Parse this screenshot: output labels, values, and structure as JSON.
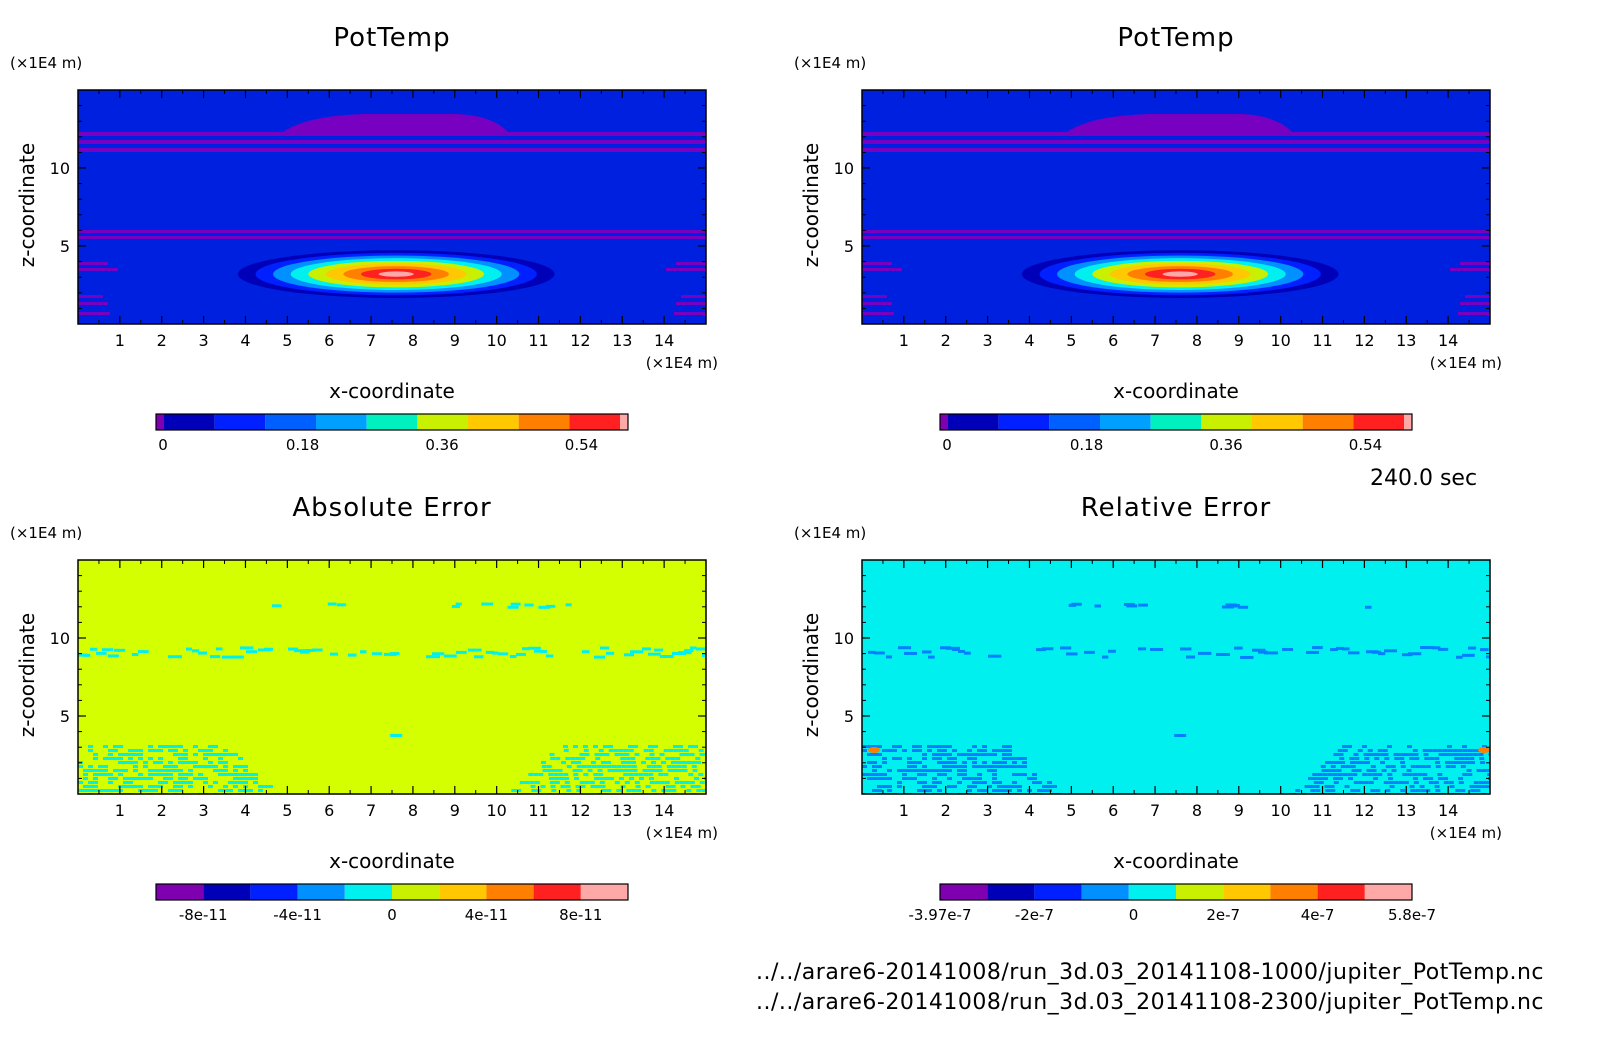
{
  "time_label": "240.0 sec",
  "file_paths": [
    "../../arare6-20141008/run_3d.03_20141108-1000/jupiter_PotTemp.nc",
    "../../arare6-20141008/run_3d.03_20141108-2300/jupiter_PotTemp.nc"
  ],
  "colors": {
    "palette10": [
      "#7f00b0",
      "#0000b8",
      "#0020ff",
      "#0090ff",
      "#00f0f0",
      "#c8f000",
      "#ffc800",
      "#ff8000",
      "#ff2020",
      "#ffa8a8"
    ],
    "potTemp_background": "#0020e0",
    "potTemp_band": "#7800c0",
    "absErr_background": "#d4ff00",
    "absErr_noise": "#00f0f0",
    "relErr_background": "#00f0f0",
    "relErr_noise": "#0080ff"
  },
  "chart_data": [
    {
      "type": "heatmap",
      "title": "PotTemp",
      "xlabel": "x-coordinate",
      "ylabel": "z-coordinate",
      "x_unit": "(×1E4 m)",
      "z_unit": "(×1E4 m)",
      "xlim": [
        0,
        15
      ],
      "zlim": [
        0,
        15
      ],
      "x_ticks": [
        "1",
        "2",
        "3",
        "4",
        "5",
        "6",
        "7",
        "8",
        "9",
        "10",
        "11",
        "12",
        "13",
        "14"
      ],
      "z_ticks": [
        "5",
        "10"
      ],
      "colorbar_ticks": [
        "0",
        "0.18",
        "0.36",
        "0.54"
      ],
      "colorbar_range": [
        0,
        0.6
      ],
      "features": {
        "thermal_bubble_center": [
          7.6,
          3.2
        ],
        "thermal_bubble_radius": [
          1.8,
          0.85
        ],
        "thermal_bubble_peak": 0.6
      }
    },
    {
      "type": "heatmap",
      "title": "PotTemp",
      "xlabel": "x-coordinate",
      "ylabel": "z-coordinate",
      "x_unit": "(×1E4 m)",
      "z_unit": "(×1E4 m)",
      "xlim": [
        0,
        15
      ],
      "zlim": [
        0,
        15
      ],
      "x_ticks": [
        "1",
        "2",
        "3",
        "4",
        "5",
        "6",
        "7",
        "8",
        "9",
        "10",
        "11",
        "12",
        "13",
        "14"
      ],
      "z_ticks": [
        "5",
        "10"
      ],
      "colorbar_ticks": [
        "0",
        "0.18",
        "0.36",
        "0.54"
      ],
      "colorbar_range": [
        0,
        0.6
      ],
      "features": {
        "thermal_bubble_center": [
          7.6,
          3.2
        ],
        "thermal_bubble_radius": [
          1.8,
          0.85
        ],
        "thermal_bubble_peak": 0.6
      }
    },
    {
      "type": "heatmap",
      "title": "Absolute Error",
      "xlabel": "x-coordinate",
      "ylabel": "z-coordinate",
      "x_unit": "(×1E4 m)",
      "z_unit": "(×1E4 m)",
      "xlim": [
        0,
        15
      ],
      "zlim": [
        0,
        15
      ],
      "x_ticks": [
        "1",
        "2",
        "3",
        "4",
        "5",
        "6",
        "7",
        "8",
        "9",
        "10",
        "11",
        "12",
        "13",
        "14"
      ],
      "z_ticks": [
        "5",
        "10"
      ],
      "colorbar_ticks": [
        "-8e-11",
        "-4e-11",
        "0",
        "4e-11",
        "8e-11"
      ],
      "colorbar_range": [
        -1e-10,
        1e-10
      ]
    },
    {
      "type": "heatmap",
      "title": "Relative Error",
      "xlabel": "x-coordinate",
      "ylabel": "z-coordinate",
      "x_unit": "(×1E4 m)",
      "z_unit": "(×1E4 m)",
      "xlim": [
        0,
        15
      ],
      "zlim": [
        0,
        15
      ],
      "x_ticks": [
        "1",
        "2",
        "3",
        "4",
        "5",
        "6",
        "7",
        "8",
        "9",
        "10",
        "11",
        "12",
        "13",
        "14"
      ],
      "z_ticks": [
        "5",
        "10"
      ],
      "colorbar_ticks": [
        "-3.97e-7",
        "-2e-7",
        "0",
        "2e-7",
        "4e-7",
        "5.8e-7"
      ],
      "colorbar_range": [
        -3.97e-07,
        5.8e-07
      ]
    }
  ]
}
